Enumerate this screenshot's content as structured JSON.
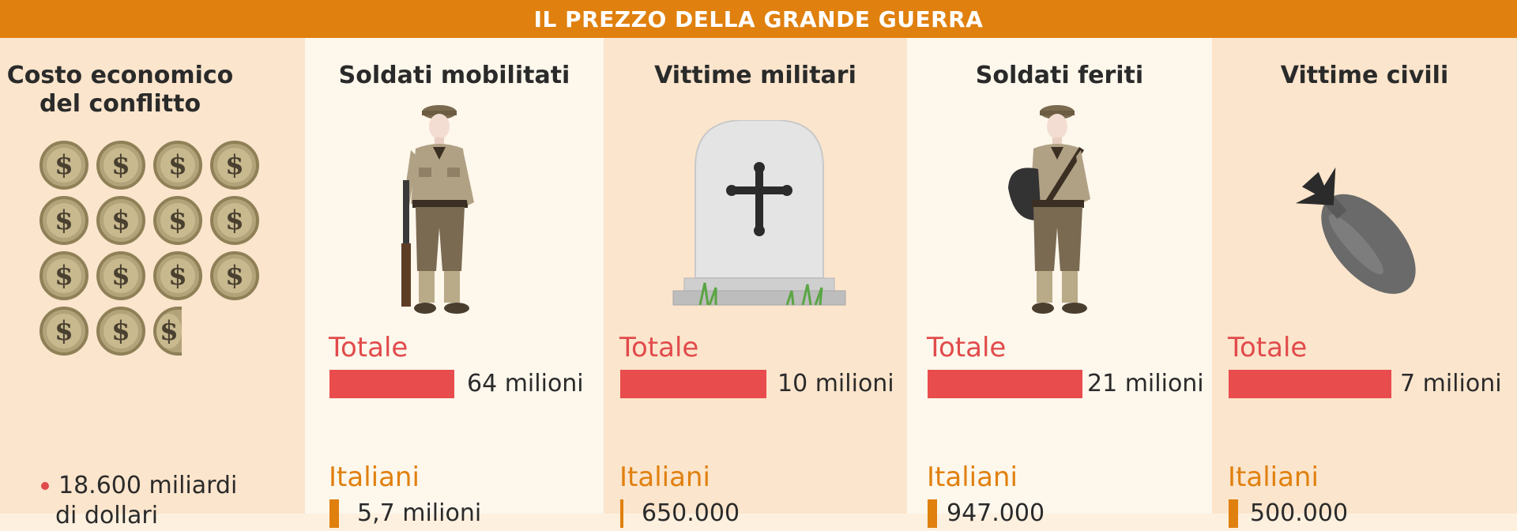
{
  "header": {
    "title": "IL PREZZO DELLA GRANDE GUERRA"
  },
  "economic": {
    "title": "Costo economico del conflitto",
    "coins_shown": 14.5,
    "value": "18.600 miliardi",
    "unit": "di dollari"
  },
  "columns": [
    {
      "title": "Soldati mobilitati",
      "total_label": "Totale",
      "total_value": "64 milioni",
      "italian_label": "Italiani",
      "italian_value": "5,7 milioni"
    },
    {
      "title": "Vittime militari",
      "total_label": "Totale",
      "total_value": "10 milioni",
      "italian_label": "Italiani",
      "italian_value": "650.000"
    },
    {
      "title": "Soldati feriti",
      "total_label": "Totale",
      "total_value": "21 milioni",
      "italian_label": "Italiani",
      "italian_value": "947.000"
    },
    {
      "title": "Vittime civili",
      "total_label": "Totale",
      "total_value": "7 milioni",
      "italian_label": "Italiani",
      "italian_value": "500.000"
    }
  ],
  "colors": {
    "header": "#e0800e",
    "total": "#e94c4c",
    "italian": "#e0800e"
  },
  "icons": [
    "dollar-coin-icon",
    "soldier-rifle-icon",
    "gravestone-cross-icon",
    "wounded-soldier-icon",
    "bomb-icon"
  ]
}
